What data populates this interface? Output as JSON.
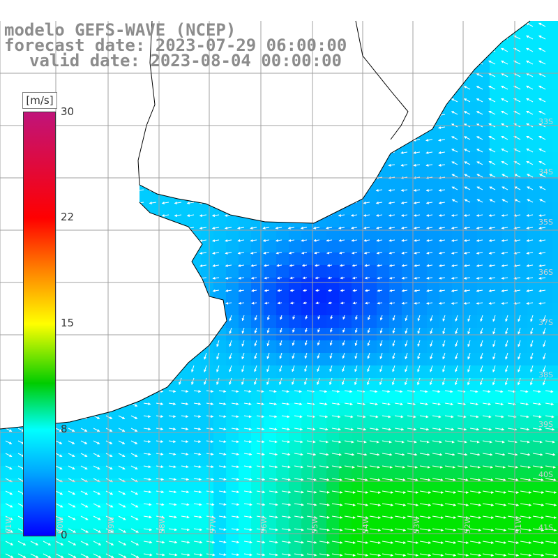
{
  "title": {
    "model": "modelo GEFS-WAVE (NCEP)",
    "forecast": "forecast date: 2023-07-29 06:00:00",
    "valid": "valid date: 2023-08-04 00:00:00"
  },
  "colorbar": {
    "units": "[m/s]",
    "ticks": [
      "30",
      "22",
      "15",
      "8",
      "0"
    ],
    "colors": [
      "#c0147a",
      "#ff0000",
      "#ff7f00",
      "#ffff00",
      "#00cc00",
      "#00ffff",
      "#00a8ff",
      "#0000ff"
    ]
  },
  "lon_labels": [
    "61W",
    "60W",
    "59W",
    "58W",
    "57W",
    "56W",
    "55W",
    "54W",
    "53W",
    "52W",
    "51W"
  ],
  "lat_labels": [
    "33S",
    "34S",
    "35S",
    "36S",
    "37S",
    "38S",
    "39S",
    "40S",
    "41S"
  ]
}
